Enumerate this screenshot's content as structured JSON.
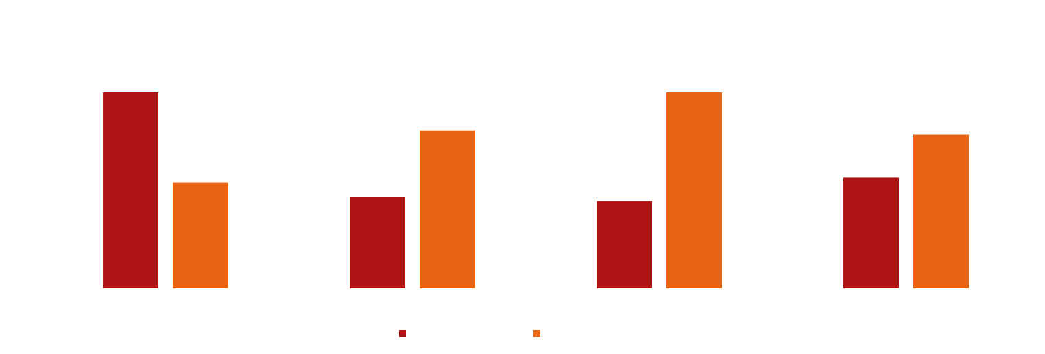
{
  "chart_data": {
    "type": "bar",
    "title": "",
    "xlabel": "",
    "ylabel": "",
    "categories": [
      "",
      "",
      "",
      ""
    ],
    "series": [
      {
        "color": "#b01515",
        "values": [
          100,
          46.5,
          44.5,
          56.5
        ]
      },
      {
        "color": "#e86412",
        "values": [
          54,
          80.5,
          100,
          78.5
        ]
      }
    ],
    "ylim": [
      0,
      100
    ],
    "grid": false,
    "legend": {
      "position": "bottom-center",
      "entries": [
        "",
        ""
      ]
    }
  }
}
